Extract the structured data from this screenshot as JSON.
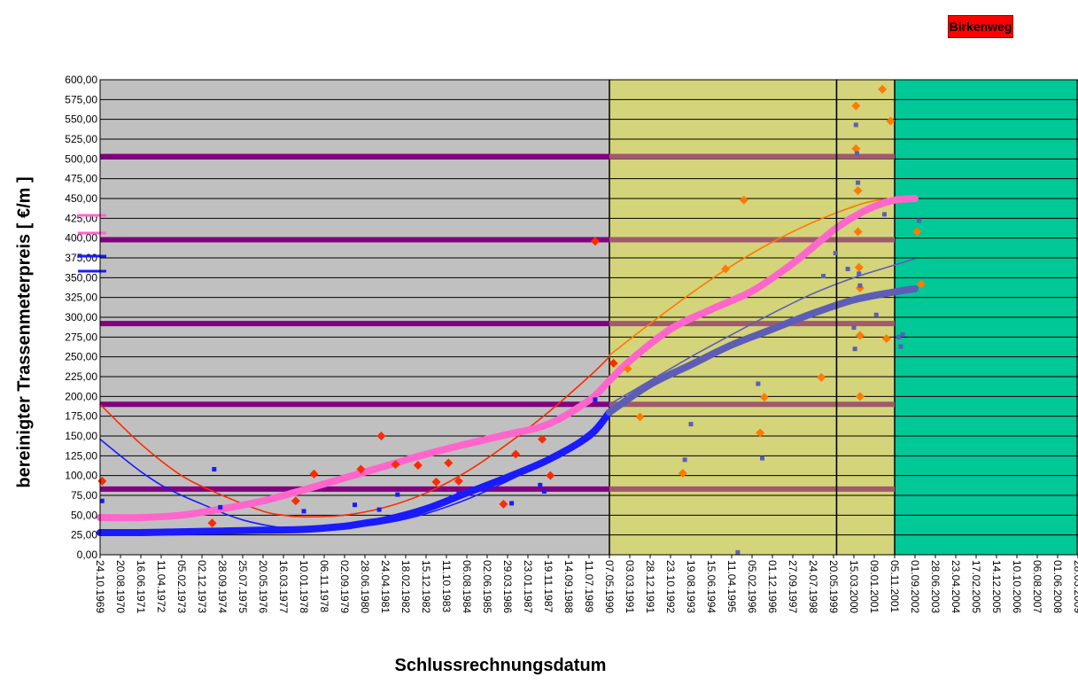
{
  "legend_badge": "Birkenweg",
  "colors": {
    "plot_background": "#c0c0c0",
    "zone_yellow": "#d4d47a",
    "zone_green": "#00c896",
    "band_purple": "#800080",
    "series_red": "#ff2a00",
    "series_orange": "#ff7a00",
    "series_blue": "#1a1aff",
    "series_slate": "#5d5db8",
    "trend_pink": "#ff66cc"
  },
  "chart_data": {
    "type": "scatter",
    "title": "",
    "xlabel": "Schlussrechnungsdatum",
    "ylabel": "bereinigter Trassenmeterpreis [ €/m ]",
    "ylim": [
      0,
      600
    ],
    "y_ticks": [
      "0,00",
      "25,00",
      "50,00",
      "75,00",
      "100,00",
      "125,00",
      "150,00",
      "175,00",
      "200,00",
      "225,00",
      "250,00",
      "275,00",
      "300,00",
      "325,00",
      "350,00",
      "375,00",
      "400,00",
      "425,00",
      "450,00",
      "475,00",
      "500,00",
      "525,00",
      "550,00",
      "575,00",
      "600,00"
    ],
    "x_ticks": [
      "24.10.1969",
      "20.08.1970",
      "16.06.1971",
      "11.04.1972",
      "05.02.1973",
      "02.12.1973",
      "28.09.1974",
      "25.07.1975",
      "20.05.1976",
      "16.03.1977",
      "10.01.1978",
      "06.11.1978",
      "02.09.1979",
      "28.06.1980",
      "24.04.1981",
      "18.02.1982",
      "15.12.1982",
      "11.10.1983",
      "06.08.1984",
      "02.06.1985",
      "29.03.1986",
      "23.01.1987",
      "19.11.1987",
      "14.09.1988",
      "11.07.1989",
      "07.05.1990",
      "03.03.1991",
      "28.12.1991",
      "23.10.1992",
      "19.08.1993",
      "15.06.1994",
      "11.04.1995",
      "05.02.1996",
      "01.12.1996",
      "27.09.1997",
      "24.07.1998",
      "20.05.1999",
      "15.03.2000",
      "09.01.2001",
      "05.11.2001",
      "01.09.2002",
      "28.06.2003",
      "23.04.2004",
      "17.02.2005",
      "14.12.2005",
      "10.10.2006",
      "06.08.2007",
      "01.06.2008",
      "28.03.2009"
    ],
    "grid": true,
    "zones": [
      {
        "from_tick": 0,
        "to_tick": 25,
        "color": "#c0c0c0"
      },
      {
        "from_tick": 25,
        "to_tick": 39,
        "color": "#d4d47a"
      },
      {
        "from_tick": 39,
        "to_tick": 48,
        "color": "#00c896"
      }
    ],
    "reference_lines": [
      83,
      190,
      292,
      398,
      503
    ],
    "series": [
      {
        "kind": "points",
        "marker": "diamond",
        "color": "#ff2a00",
        "x": [
          0.1,
          5.5,
          9.6,
          10.5,
          12.8,
          13.8,
          14.5,
          15.6,
          16.5,
          17.1,
          17.6,
          19.8,
          20.4,
          21.7,
          22.1,
          24.3,
          25.2
        ],
        "y": [
          93,
          40,
          68,
          102,
          108,
          150,
          114,
          113,
          92,
          116,
          93,
          64,
          127,
          146,
          100,
          396,
          242
        ]
      },
      {
        "kind": "points",
        "marker": "diamond",
        "color": "#ff7a00",
        "x": [
          25.9,
          26.5,
          28.6,
          30.7,
          31.6,
          32.4,
          32.6,
          35.4,
          37.1,
          37.1,
          37.2,
          37.2,
          37.25,
          37.3,
          37.3,
          37.3,
          38.4,
          38.6,
          38.8,
          40.1,
          40.3
        ],
        "y": [
          235,
          174,
          103,
          361,
          448,
          154,
          199,
          224,
          567,
          513,
          460,
          408,
          363,
          337,
          277,
          200,
          588,
          273,
          548,
          408,
          342
        ]
      },
      {
        "kind": "points",
        "marker": "square",
        "color": "#1a1aff",
        "x": [
          0.1,
          5.6,
          5.9,
          10.0,
          12.5,
          13.7,
          14.6,
          17.6,
          20.2,
          21.6,
          21.8,
          24.3
        ],
        "y": [
          68,
          108,
          60,
          55,
          63,
          57,
          76,
          77,
          65,
          88,
          80,
          196
        ]
      },
      {
        "kind": "points",
        "marker": "square",
        "color": "#5d5db8",
        "x": [
          28.7,
          29.0,
          31.3,
          32.3,
          32.5,
          35.5,
          36.1,
          36.7,
          37.0,
          37.05,
          37.1,
          37.15,
          37.2,
          37.25,
          37.3,
          38.1,
          38.5,
          39.2,
          39.3,
          39.4,
          40.2
        ],
        "y": [
          120,
          165,
          3,
          216,
          122,
          352,
          381,
          361,
          287,
          260,
          543,
          507,
          470,
          355,
          340,
          303,
          430,
          275,
          263,
          278,
          422
        ]
      },
      {
        "kind": "line",
        "style": "thin",
        "color": "#ff2a00",
        "x": [
          0,
          2,
          4,
          6,
          8,
          9,
          10,
          12,
          14,
          16,
          18,
          20,
          22,
          24,
          25
        ],
        "y": [
          190,
          140,
          100,
          75,
          55,
          50,
          48,
          50,
          60,
          78,
          105,
          140,
          180,
          225,
          250
        ]
      },
      {
        "kind": "line",
        "style": "thin",
        "color": "#ff7a00",
        "x": [
          25,
          27,
          29,
          31,
          33,
          35,
          37,
          38,
          39,
          40
        ],
        "y": [
          252,
          292,
          330,
          365,
          395,
          420,
          440,
          447,
          450,
          450
        ]
      },
      {
        "kind": "line",
        "style": "thin",
        "color": "#1a1aff",
        "x": [
          0,
          1,
          2,
          3,
          4,
          5,
          6,
          7,
          8,
          9,
          10,
          12,
          14,
          16,
          18,
          20,
          22,
          24,
          25
        ],
        "y": [
          146,
          125,
          105,
          88,
          75,
          64,
          53,
          44,
          38,
          34,
          33,
          34,
          40,
          52,
          70,
          93,
          120,
          155,
          180
        ]
      },
      {
        "kind": "line",
        "style": "thin",
        "color": "#5d5db8",
        "x": [
          25,
          27,
          29,
          31,
          33,
          35,
          37,
          39,
          40
        ],
        "y": [
          190,
          220,
          250,
          278,
          305,
          330,
          350,
          366,
          374
        ]
      },
      {
        "kind": "line",
        "style": "thick",
        "color": "#ff66cc",
        "x": [
          0,
          2,
          4,
          6,
          8,
          10,
          12,
          14,
          16,
          18,
          20,
          22,
          24,
          25,
          26,
          28,
          30,
          32,
          34,
          36,
          37,
          38,
          39,
          40
        ],
        "y": [
          47,
          47,
          50,
          58,
          68,
          82,
          97,
          112,
          127,
          140,
          152,
          165,
          195,
          220,
          245,
          285,
          310,
          333,
          368,
          410,
          427,
          440,
          448,
          450
        ]
      },
      {
        "kind": "line",
        "style": "thick",
        "color": "#1a1aff",
        "x": [
          0,
          2,
          4,
          6,
          8,
          10,
          12,
          13,
          14,
          16,
          18,
          20,
          22,
          24,
          25
        ],
        "y": [
          28,
          28,
          29,
          30,
          31,
          32,
          36,
          40,
          44,
          58,
          78,
          98,
          120,
          150,
          180
        ]
      },
      {
        "kind": "line",
        "style": "thick",
        "color": "#5d5db8",
        "x": [
          25,
          27,
          29,
          31,
          33,
          35,
          37,
          39,
          40
        ],
        "y": [
          180,
          215,
          240,
          265,
          285,
          305,
          322,
          332,
          336
        ]
      },
      {
        "kind": "line",
        "style": "thin",
        "color": "#000000",
        "x": [
          36.15,
          36.15
        ],
        "y": [
          0,
          600
        ]
      }
    ]
  }
}
